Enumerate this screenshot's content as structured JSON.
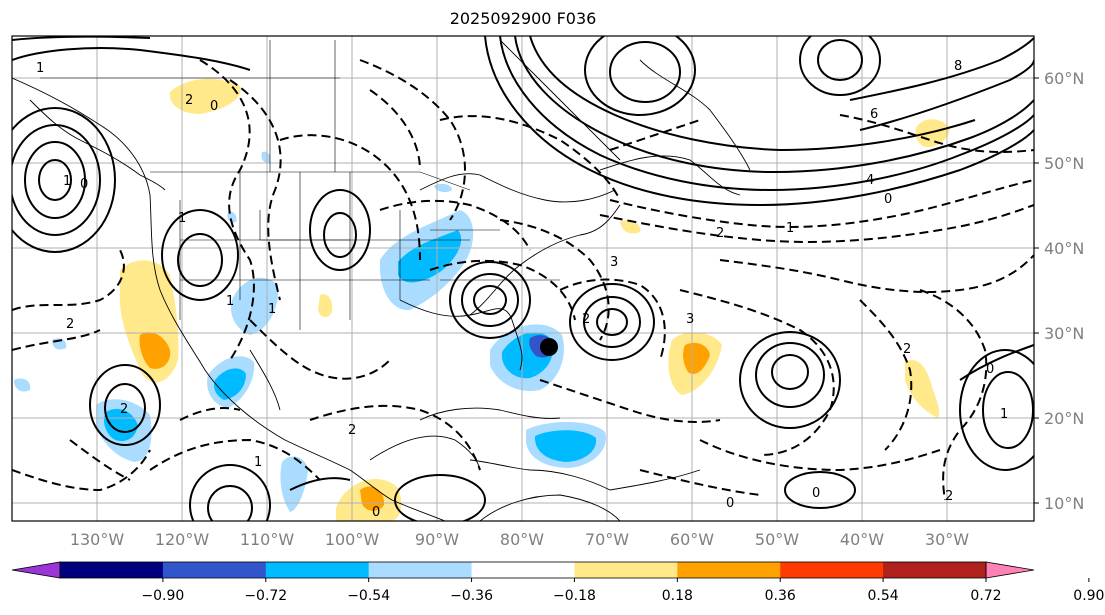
{
  "title": "2025092900 F036",
  "latitude_labels": [
    "60°N",
    "50°N",
    "40°N",
    "30°N",
    "20°N",
    "10°N"
  ],
  "longitude_labels": [
    "130°W",
    "120°W",
    "110°W",
    "100°W",
    "90°W",
    "80°W",
    "70°W",
    "60°W",
    "50°W",
    "40°W",
    "30°W"
  ],
  "contour_labels": {
    "l1": "1",
    "l2": "2",
    "l3": "0",
    "l4": "1",
    "l5": "1",
    "l6": "0",
    "l7": "8",
    "l8": "6",
    "l9": "4",
    "l10": "0",
    "l11": "2",
    "l12": "1",
    "l13": "1",
    "l14": "2",
    "l15": "3",
    "l16": "3",
    "l17": "2",
    "l18": "0",
    "l19": "1",
    "l20": "1",
    "l21": "2",
    "l22": "0",
    "l23": "0",
    "l24": "2",
    "l25": "0",
    "l26": "2",
    "l27": "1",
    "l28": "2"
  },
  "colorbar": {
    "ticks": [
      "−0.90",
      "−0.72",
      "−0.54",
      "−0.36",
      "−0.18",
      "0.18",
      "0.36",
      "0.54",
      "0.72",
      "0.90"
    ],
    "colors": [
      "#9a36d8",
      "#00007f",
      "#3355cc",
      "#00bbff",
      "#aadcff",
      "#ffffff",
      "#ffe98a",
      "#ffa200",
      "#ff3b00",
      "#b0201c",
      "#ff82b5"
    ]
  },
  "colors": {
    "frame": "#000000",
    "grid": "#b0b0b0",
    "label_gray": "#808080",
    "marker": "#000000"
  }
}
